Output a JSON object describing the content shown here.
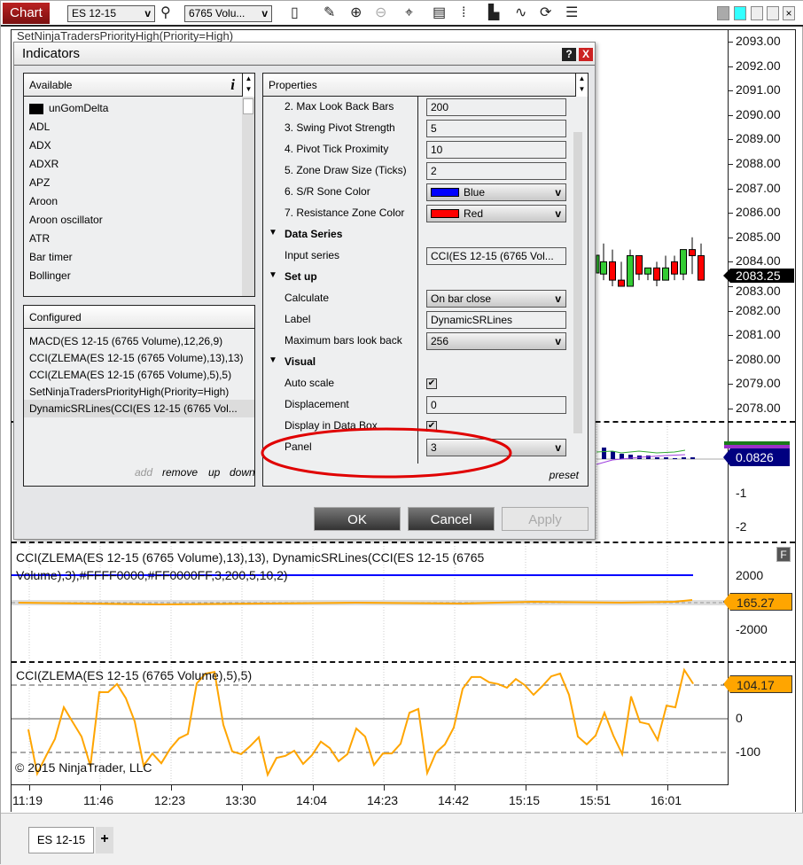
{
  "toolbar": {
    "chart_tab": "Chart",
    "instrument": "ES 12-15",
    "period": "6765 Volu...",
    "icons": [
      "search-icon",
      "bar-style-icon",
      "pencil-icon",
      "zoom-in-icon",
      "zoom-out-icon",
      "crosshair-icon",
      "data-box-icon",
      "indicators-icon",
      "strategies-icon",
      "drawing-tools-icon",
      "reload-icon",
      "properties-list-icon"
    ]
  },
  "hidden_panel_label": "SetNinjaTradersPriorityHigh(Priority=High)",
  "dialog": {
    "title": "Indicators",
    "help": "?",
    "close": "X",
    "available": {
      "header": "Available",
      "info": "i",
      "items": [
        "unGomDelta",
        "ADL",
        "ADX",
        "ADXR",
        "APZ",
        "Aroon",
        "Aroon oscillator",
        "ATR",
        "Bar timer",
        "Bollinger"
      ]
    },
    "configured": {
      "header": "Configured",
      "items": [
        "MACD(ES 12-15 (6765 Volume),12,26,9)",
        "CCI(ZLEMA(ES 12-15 (6765 Volume),13),13)",
        "CCI(ZLEMA(ES 12-15 (6765 Volume),5),5)",
        "SetNinjaTradersPriorityHigh(Priority=High)",
        "DynamicSRLines(CCI(ES 12-15 (6765 Vol..."
      ],
      "selected_index": 4,
      "actions": {
        "add": "add",
        "remove": "remove",
        "up": "up",
        "down": "down"
      }
    },
    "properties": {
      "header": "Properties",
      "preset": "preset",
      "rows": [
        {
          "label": "2. Max Look Back Bars",
          "type": "text",
          "value": "200"
        },
        {
          "label": "3. Swing Pivot Strength",
          "type": "text",
          "value": "5"
        },
        {
          "label": "4. Pivot Tick Proximity",
          "type": "text",
          "value": "10"
        },
        {
          "label": "5. Zone Draw Size (Ticks)",
          "type": "text",
          "value": "2"
        },
        {
          "label": "6. S/R Sone Color",
          "type": "color",
          "value": "Blue",
          "color": "#0000ff"
        },
        {
          "label": "7. Resistance Zone Color",
          "type": "color",
          "value": "Red",
          "color": "#ff0000"
        },
        {
          "label": "Data Series",
          "type": "category"
        },
        {
          "label": "Input series",
          "type": "text",
          "value": "CCI(ES 12-15 (6765 Vol..."
        },
        {
          "label": "Set up",
          "type": "category"
        },
        {
          "label": "Calculate",
          "type": "select",
          "value": "On bar close"
        },
        {
          "label": "Label",
          "type": "text",
          "value": "DynamicSRLines"
        },
        {
          "label": "Maximum bars look back",
          "type": "select",
          "value": "256"
        },
        {
          "label": "Visual",
          "type": "category"
        },
        {
          "label": "Auto scale",
          "type": "checkbox",
          "value": true
        },
        {
          "label": "Displacement",
          "type": "text",
          "value": "0"
        },
        {
          "label": "Display in Data Box",
          "type": "checkbox",
          "value": true
        },
        {
          "label": "Panel",
          "type": "select",
          "value": "3"
        }
      ]
    },
    "buttons": {
      "ok": "OK",
      "cancel": "Cancel",
      "apply": "Apply"
    },
    "annotation_color": "#e00000"
  },
  "price_panel": {
    "axis": [
      "2093.00",
      "2092.00",
      "2091.00",
      "2090.00",
      "2089.00",
      "2088.00",
      "2087.00",
      "2086.00",
      "2085.00",
      "2084.00",
      "2083.00",
      "2082.00",
      "2081.00",
      "2080.00",
      "2079.00",
      "2078.00"
    ],
    "last": "2083.25",
    "candles": [
      [
        2083.5,
        2084.0,
        2084.75,
        2083.25
      ],
      [
        2084.0,
        2083.25,
        2084.5,
        2083.0
      ],
      [
        2083.25,
        2083.0,
        2084.0,
        2083.0
      ],
      [
        2083.0,
        2084.25,
        2084.5,
        2083.0
      ],
      [
        2084.25,
        2083.5,
        2084.25,
        2083.25
      ],
      [
        2083.5,
        2083.75,
        2083.75,
        2083.25
      ],
      [
        2083.75,
        2083.25,
        2084.0,
        2083.0
      ],
      [
        2083.25,
        2083.75,
        2084.25,
        2083.25
      ],
      [
        2084.0,
        2083.5,
        2084.25,
        2083.25
      ],
      [
        2083.5,
        2084.5,
        2084.5,
        2083.25
      ],
      [
        2084.5,
        2084.25,
        2085.0,
        2083.5
      ],
      [
        2084.25,
        2083.25,
        2084.75,
        2083.25
      ]
    ],
    "up_color": "#33cc33",
    "down_color": "#ff0000"
  },
  "macd_panel": {
    "axis": [
      "-1",
      "-2"
    ],
    "last": "0.0826",
    "last_color": "#000080"
  },
  "cci13_panel": {
    "label": "CCI(ZLEMA(ES 12-15 (6765 Volume),13),13), DynamicSRLines(CCI(ES 12-15 (6765 Volume),3),#FFFF0000,#FF0000FF,3,200,5,10,2)",
    "axis": [
      "2000",
      "-2000"
    ],
    "last": "165.27",
    "f_button": "F"
  },
  "cci5_panel": {
    "label": "CCI(ZLEMA(ES 12-15 (6765 Volume),5),5)",
    "axis": [
      "0",
      "-100"
    ],
    "last": "104.17",
    "copyright": "© 2015 NinjaTrader, LLC"
  },
  "chart_data": {
    "type": "line",
    "ylim": [
      -192,
      163
    ],
    "levels": [
      100,
      0,
      -100
    ],
    "series": [
      {
        "color": "#ffa500",
        "values": [
          -32,
          -163,
          -110,
          -60,
          34,
          -10,
          -53,
          -140,
          79,
          79,
          103,
          61,
          -8,
          -139,
          -103,
          -132,
          -89,
          -58,
          -45,
          105,
          134,
          139,
          -18,
          -97,
          -105,
          -82,
          -55,
          -166,
          -116,
          -110,
          -95,
          -134,
          -108,
          -68,
          -87,
          -126,
          -105,
          -29,
          -53,
          -137,
          -103,
          -103,
          -74,
          18,
          29,
          -161,
          -100,
          -76,
          -26,
          89,
          124,
          124,
          108,
          103,
          92,
          118,
          100,
          71,
          97,
          126,
          134,
          71,
          -53,
          -76,
          -50,
          18,
          -50,
          -105,
          66,
          -10,
          -16,
          -63,
          39,
          34,
          145,
          104.17
        ]
      }
    ],
    "x_ticks": [
      "11:19",
      "11:46",
      "12:23",
      "13:30",
      "14:04",
      "14:23",
      "14:42",
      "15:15",
      "15:51",
      "16:01"
    ]
  },
  "bottom_tabs": {
    "active": "ES 12-15",
    "add": "+"
  }
}
